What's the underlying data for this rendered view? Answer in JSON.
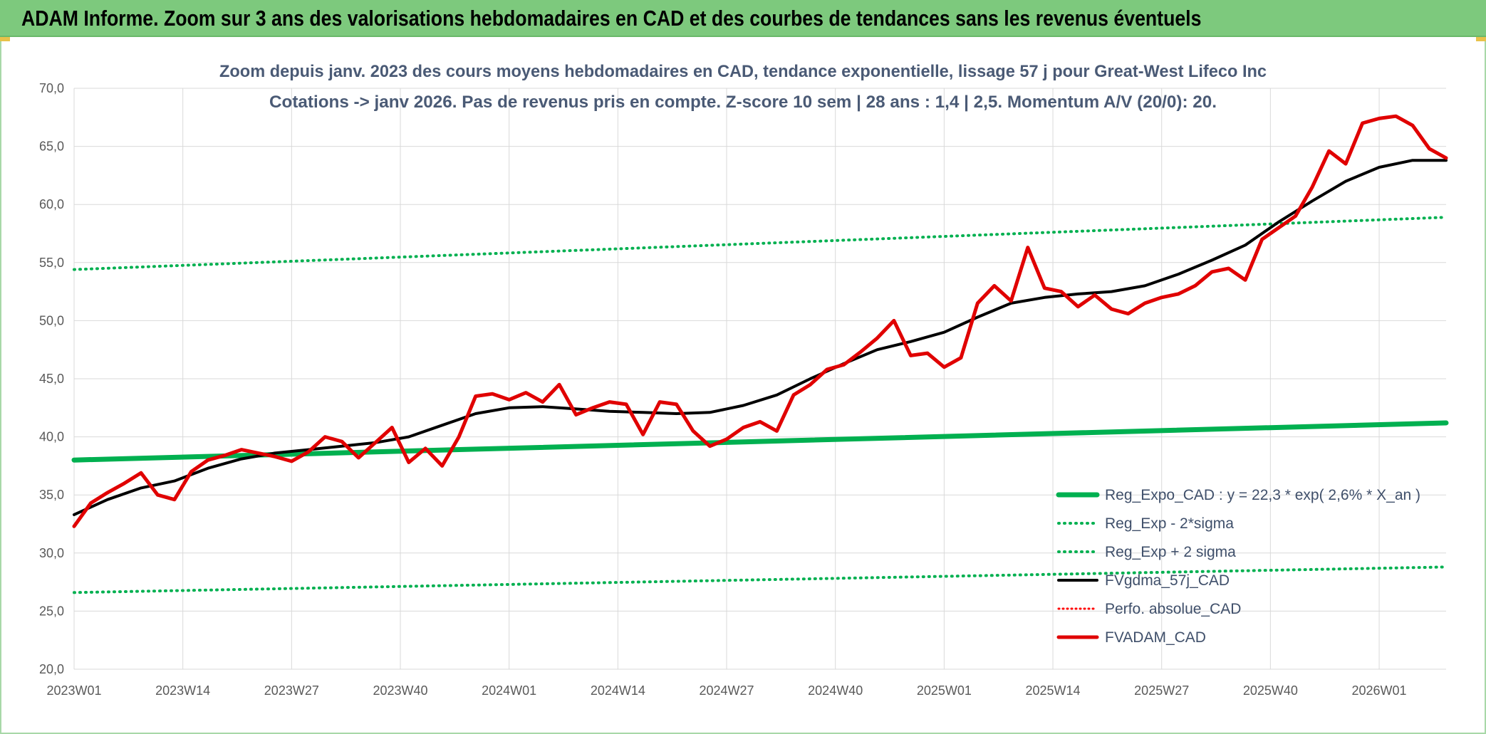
{
  "header": {
    "title": "ADAM Informe. Zoom sur 3 ans des valorisations hebdomadaires en CAD et des courbes de tendances sans les revenus éventuels"
  },
  "colors": {
    "banner": "#7dc97d",
    "reg_expo": "#00b050",
    "sigma": "#00b050",
    "fvgdma": "#000000",
    "perfo": "#ff0000",
    "fvadam": "#e00000",
    "grid": "#d9d9d9"
  },
  "chart_data": {
    "type": "line",
    "title": "Zoom depuis janv. 2023 des cours moyens hebdomadaires en CAD, tendance exponentielle, lissage 57 j pour Great-West Lifeco Inc",
    "subtitle": "Cotations -> janv 2026. Pas de revenus pris en compte. Z-score 10 sem | 28 ans : 1,4 | 2,5. Momentum A/V (20/0): 20.",
    "xlabel": "",
    "ylabel": "",
    "ylim": [
      20,
      70
    ],
    "y_ticks": [
      "70,0",
      "65,0",
      "60,0",
      "55,0",
      "50,0",
      "45,0",
      "40,0",
      "35,0",
      "30,0",
      "25,0",
      "20,0"
    ],
    "x_range_weeks": [
      0,
      164
    ],
    "x_ticks": [
      {
        "label": "2023W01",
        "week": 0
      },
      {
        "label": "2023W14",
        "week": 13
      },
      {
        "label": "2023W27",
        "week": 26
      },
      {
        "label": "2023W40",
        "week": 39
      },
      {
        "label": "2024W01",
        "week": 52
      },
      {
        "label": "2024W14",
        "week": 65
      },
      {
        "label": "2024W27",
        "week": 78
      },
      {
        "label": "2024W40",
        "week": 91
      },
      {
        "label": "2025W01",
        "week": 104
      },
      {
        "label": "2025W14",
        "week": 117
      },
      {
        "label": "2025W27",
        "week": 130
      },
      {
        "label": "2025W40",
        "week": 143
      },
      {
        "label": "2026W01",
        "week": 156
      }
    ],
    "grid": true,
    "legend_position": "bottom-right",
    "series": [
      {
        "key": "reg_expo",
        "name": "Reg_Expo_CAD : y = 22,3 * exp( 2,6% *  X_an )",
        "style": "thick-solid",
        "weeks": [
          0,
          164
        ],
        "values": [
          38.0,
          41.2
        ]
      },
      {
        "key": "reg_minus",
        "name": "Reg_Exp - 2*sigma",
        "style": "dotted",
        "weeks": [
          0,
          164
        ],
        "values": [
          26.6,
          28.8
        ]
      },
      {
        "key": "reg_plus",
        "name": "Reg_Exp + 2 sigma",
        "style": "dotted",
        "weeks": [
          0,
          164
        ],
        "values": [
          54.4,
          58.9
        ]
      },
      {
        "key": "fvgdma",
        "name": "FVgdma_57j_CAD",
        "style": "solid",
        "weeks": [
          0,
          4,
          8,
          12,
          16,
          20,
          24,
          28,
          32,
          36,
          40,
          44,
          48,
          52,
          56,
          60,
          64,
          68,
          72,
          76,
          80,
          84,
          88,
          92,
          96,
          100,
          104,
          108,
          112,
          116,
          120,
          124,
          128,
          132,
          136,
          140,
          144,
          148,
          152,
          156,
          160,
          164
        ],
        "values": [
          33.3,
          34.6,
          35.6,
          36.2,
          37.3,
          38.1,
          38.6,
          38.9,
          39.2,
          39.5,
          40.0,
          41.0,
          42.0,
          42.5,
          42.6,
          42.4,
          42.2,
          42.1,
          42.0,
          42.1,
          42.7,
          43.6,
          45.0,
          46.3,
          47.5,
          48.2,
          49.0,
          50.3,
          51.5,
          52.0,
          52.3,
          52.5,
          53.0,
          54.0,
          55.2,
          56.5,
          58.5,
          60.3,
          62.0,
          63.2,
          63.8,
          63.8
        ]
      },
      {
        "key": "perfo",
        "name": "Perfo. absolue_CAD",
        "style": "dotted",
        "weeks": [],
        "values": []
      },
      {
        "key": "fvadam",
        "name": "FVADAM_CAD",
        "style": "solid",
        "weeks": [
          0,
          2,
          4,
          6,
          8,
          10,
          12,
          14,
          16,
          18,
          20,
          22,
          24,
          26,
          28,
          30,
          32,
          34,
          36,
          38,
          40,
          42,
          44,
          46,
          48,
          50,
          52,
          54,
          56,
          58,
          60,
          62,
          64,
          66,
          68,
          70,
          72,
          74,
          76,
          78,
          80,
          82,
          84,
          86,
          88,
          90,
          92,
          94,
          96,
          98,
          100,
          102,
          104,
          106,
          108,
          110,
          112,
          114,
          116,
          118,
          120,
          122,
          124,
          126,
          128,
          130,
          132,
          134,
          136,
          138,
          140,
          142,
          144,
          146,
          148,
          150,
          152,
          154,
          156,
          158,
          160,
          162,
          164
        ],
        "values": [
          32.3,
          34.3,
          35.2,
          36.0,
          36.9,
          35.0,
          34.6,
          37.0,
          38.0,
          38.4,
          38.9,
          38.6,
          38.3,
          37.9,
          38.7,
          40.0,
          39.6,
          38.2,
          39.5,
          40.8,
          37.8,
          39.0,
          37.5,
          40.0,
          43.5,
          43.7,
          43.2,
          43.8,
          43.0,
          44.5,
          41.9,
          42.5,
          43.0,
          42.8,
          40.2,
          43.0,
          42.8,
          40.5,
          39.2,
          39.8,
          40.8,
          41.3,
          40.5,
          43.6,
          44.5,
          45.8,
          46.2,
          47.3,
          48.5,
          50.0,
          47.0,
          47.2,
          46.0,
          46.8,
          51.5,
          53.0,
          51.7,
          56.3,
          52.8,
          52.5,
          51.2,
          52.2,
          51.0,
          50.6,
          51.5,
          52.0,
          52.3,
          53.0,
          54.2,
          54.5,
          53.5,
          57.0,
          58.0,
          59.0,
          61.5,
          64.6,
          63.5,
          67.0,
          67.4,
          67.6,
          66.8,
          64.8,
          64.0
        ]
      }
    ]
  }
}
